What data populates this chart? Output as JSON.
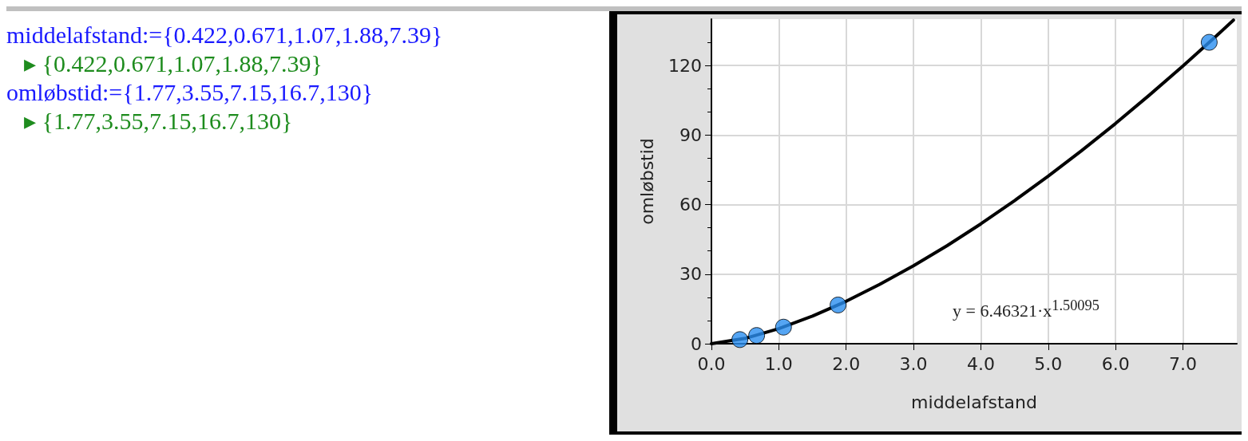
{
  "chart_data": {
    "type": "scatter",
    "xlabel": "middelafstand",
    "ylabel": "omløbstid",
    "annotations": [
      "middelafstand:={0.422,0.671,1.07,1.88,7.39}",
      "▸ {0.422,0.671,1.07,1.88,7.39}",
      "omløbstid:={1.77,3.55,7.15,16.7,130}",
      "▸ {1.77,3.55,7.15,16.7,130}",
      "y = 6.46321·x$^{1.50095}$"
    ],
    "series": [
      {
        "color": "#2b8ff0",
        "x": [
          0.422,
          0.671,
          1.07,
          1.88,
          7.39
        ],
        "values": [
          1.77,
          3.55,
          7.15,
          16.7,
          130
        ]
      },
      {
        "type": "line",
        "color": "#000000",
        "marker": "none",
        "x": [
          0,
          0.5,
          1,
          1.5,
          2,
          2.5,
          3,
          3.5,
          4,
          4.5,
          5,
          5.5,
          6,
          6.5,
          7,
          7.5,
          7.75
        ],
        "values": [
          0,
          2.3,
          6.5,
          11.9,
          18.3,
          25.6,
          33.6,
          42.3,
          51.7,
          61.7,
          72.3,
          83.4,
          95.0,
          107.2,
          119.8,
          132.9,
          139.6
        ]
      }
    ],
    "xlim": [
      0,
      7.8
    ],
    "ylim": [
      0,
      140
    ],
    "xticks": [
      {
        "value": 0,
        "label": "0.0"
      },
      {
        "value": 1,
        "label": "1.0"
      },
      {
        "value": 2,
        "label": "2.0"
      },
      {
        "value": 3,
        "label": "3.0"
      },
      {
        "value": 4,
        "label": "4.0"
      },
      {
        "value": 5,
        "label": "5.0"
      },
      {
        "value": 6,
        "label": "6.0"
      },
      {
        "value": 7,
        "label": "7.0"
      }
    ],
    "yticks": [
      0,
      30,
      60,
      90,
      120
    ],
    "grid": true,
    "marker": "circle",
    "line_style": "solid"
  }
}
